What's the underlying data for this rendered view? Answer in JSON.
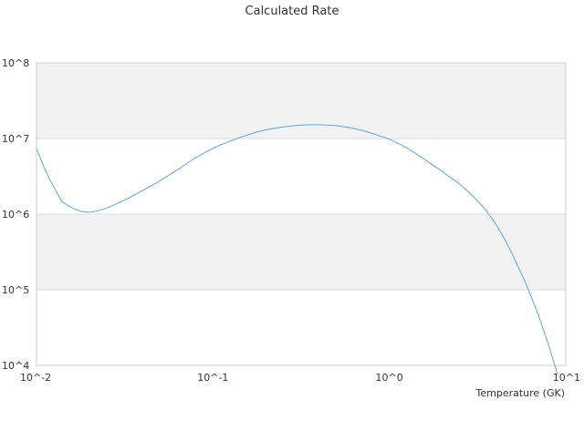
{
  "chart_data": {
    "type": "line",
    "title": "Calculated Rate",
    "xlabel": "Temperature (GK)",
    "ylabel": "",
    "x_scale": "log",
    "y_scale": "log",
    "xlim": [
      0.01,
      10
    ],
    "ylim": [
      10000,
      100000000
    ],
    "x_tick_labels": [
      "10^-2",
      "10^-1",
      "10^0",
      "10^1"
    ],
    "x_tick_values": [
      0.01,
      0.1,
      1,
      10
    ],
    "y_tick_labels": [
      "10^4",
      "10^5",
      "10^6",
      "10^7",
      "10^8"
    ],
    "y_tick_values": [
      10000,
      100000,
      1000000,
      10000000,
      100000000
    ],
    "grid": "alternating horizontal bands",
    "legend": "none",
    "colors": {
      "line": "#5aa6e6",
      "band": "#f2f2f2",
      "gridline": "#d9d9d9",
      "frame": "#cccccc"
    },
    "series": [
      {
        "x": [
          0.01,
          0.011,
          0.012,
          0.013,
          0.014,
          0.016,
          0.018,
          0.02,
          0.022,
          0.025,
          0.028,
          0.032,
          0.036,
          0.04,
          0.05,
          0.06,
          0.07,
          0.08,
          0.09,
          0.1,
          0.12,
          0.14,
          0.16,
          0.18,
          0.2,
          0.23,
          0.26,
          0.3,
          0.35,
          0.4,
          0.45,
          0.5,
          0.6,
          0.7,
          0.8,
          0.9,
          1.0,
          1.2,
          1.4,
          1.6,
          1.8,
          2.0,
          2.5,
          3.0,
          3.5,
          4.0,
          4.5,
          5.0,
          6.0,
          7.0,
          8.0,
          9.0
        ],
        "y": [
          7400000,
          4200000,
          2750000,
          1950000,
          1450000,
          1200000,
          1080000,
          1060000,
          1100000,
          1200000,
          1350000,
          1550000,
          1800000,
          2050000,
          2750000,
          3600000,
          4550000,
          5600000,
          6500000,
          7400000,
          8900000,
          10200000,
          11300000,
          12300000,
          13000000,
          13800000,
          14400000,
          14900000,
          15200000,
          15200000,
          15000000,
          14800000,
          13900000,
          12800000,
          11700000,
          10700000,
          9800000,
          8000000,
          6400000,
          5200000,
          4300000,
          3650000,
          2500000,
          1700000,
          1150000,
          750000,
          470000,
          290000,
          115000,
          46000,
          18500,
          7500
        ]
      }
    ]
  }
}
